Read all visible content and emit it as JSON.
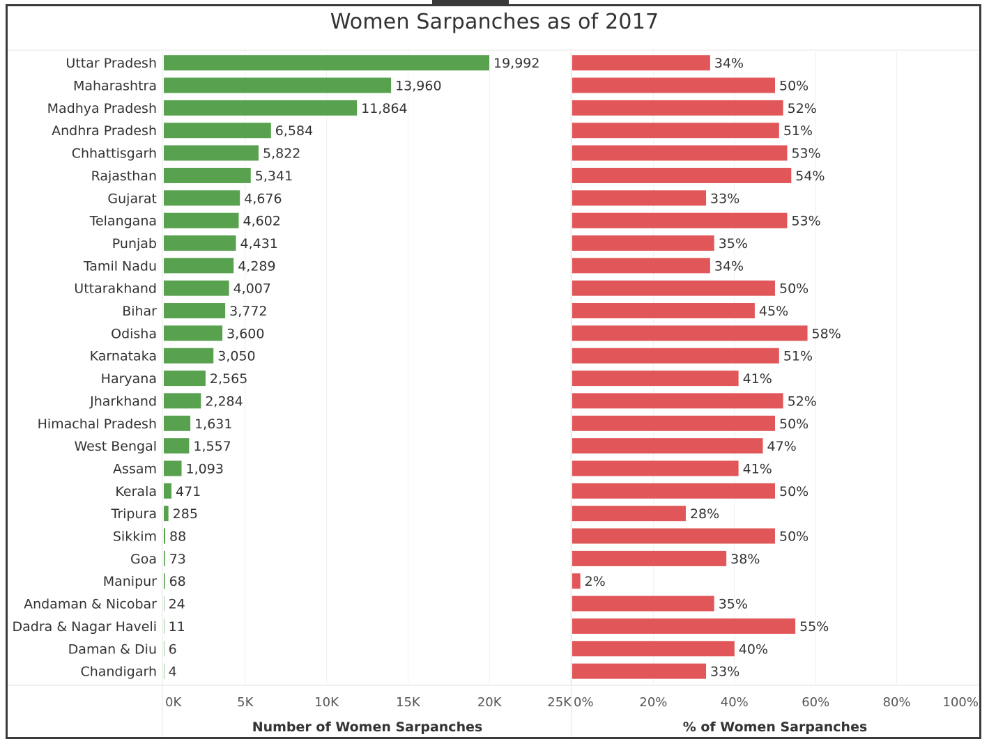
{
  "chart_data": {
    "type": "bar",
    "orientation": "horizontal",
    "title": "Women Sarpanches as of 2017",
    "categories": [
      "Uttar Pradesh",
      "Maharashtra",
      "Madhya Pradesh",
      "Andhra Pradesh",
      "Chhattisgarh",
      "Rajasthan",
      "Gujarat",
      "Telangana",
      "Punjab",
      "Tamil Nadu",
      "Uttarakhand",
      "Bihar",
      "Odisha",
      "Karnataka",
      "Haryana",
      "Jharkhand",
      "Himachal Pradesh",
      "West Bengal",
      "Assam",
      "Kerala",
      "Tripura",
      "Sikkim",
      "Goa",
      "Manipur",
      "Andaman & Nicobar",
      "Dadra & Nagar Haveli",
      "Daman & Diu",
      "Chandigarh"
    ],
    "panels": [
      {
        "name": "count",
        "xlabel": "Number of Women Sarpanches",
        "xlim": [
          0,
          25000
        ],
        "ticks": [
          0,
          5000,
          10000,
          15000,
          20000,
          25000
        ],
        "tick_labels": [
          "0K",
          "5K",
          "10K",
          "15K",
          "20K",
          "25K"
        ],
        "color": "#58a14e",
        "values": [
          19992,
          13960,
          11864,
          6584,
          5822,
          5341,
          4676,
          4602,
          4431,
          4289,
          4007,
          3772,
          3600,
          3050,
          2565,
          2284,
          1631,
          1557,
          1093,
          471,
          285,
          88,
          73,
          68,
          24,
          11,
          6,
          4
        ],
        "labels": [
          "19,992",
          "13,960",
          "11,864",
          "6,584",
          "5,822",
          "5,341",
          "4,676",
          "4,602",
          "4,431",
          "4,289",
          "4,007",
          "3,772",
          "3,600",
          "3,050",
          "2,565",
          "2,284",
          "1,631",
          "1,557",
          "1,093",
          "471",
          "285",
          "88",
          "73",
          "68",
          "24",
          "11",
          "6",
          "4"
        ]
      },
      {
        "name": "percent",
        "xlabel": "% of Women Sarpanches",
        "xlim": [
          0,
          100
        ],
        "ticks": [
          0,
          20,
          40,
          60,
          80,
          100
        ],
        "tick_labels": [
          "0%",
          "20%",
          "40%",
          "60%",
          "80%",
          "100%"
        ],
        "color": "#e15759",
        "values": [
          34,
          50,
          52,
          51,
          53,
          54,
          33,
          53,
          35,
          34,
          50,
          45,
          58,
          51,
          41,
          52,
          50,
          47,
          41,
          50,
          28,
          50,
          38,
          2,
          35,
          55,
          40,
          33
        ],
        "labels": [
          "34%",
          "50%",
          "52%",
          "51%",
          "53%",
          "54%",
          "33%",
          "53%",
          "35%",
          "34%",
          "50%",
          "45%",
          "58%",
          "51%",
          "41%",
          "52%",
          "50%",
          "47%",
          "41%",
          "50%",
          "28%",
          "50%",
          "38%",
          "2%",
          "35%",
          "55%",
          "40%",
          "33%"
        ]
      }
    ],
    "grid": true,
    "legend": "none"
  }
}
